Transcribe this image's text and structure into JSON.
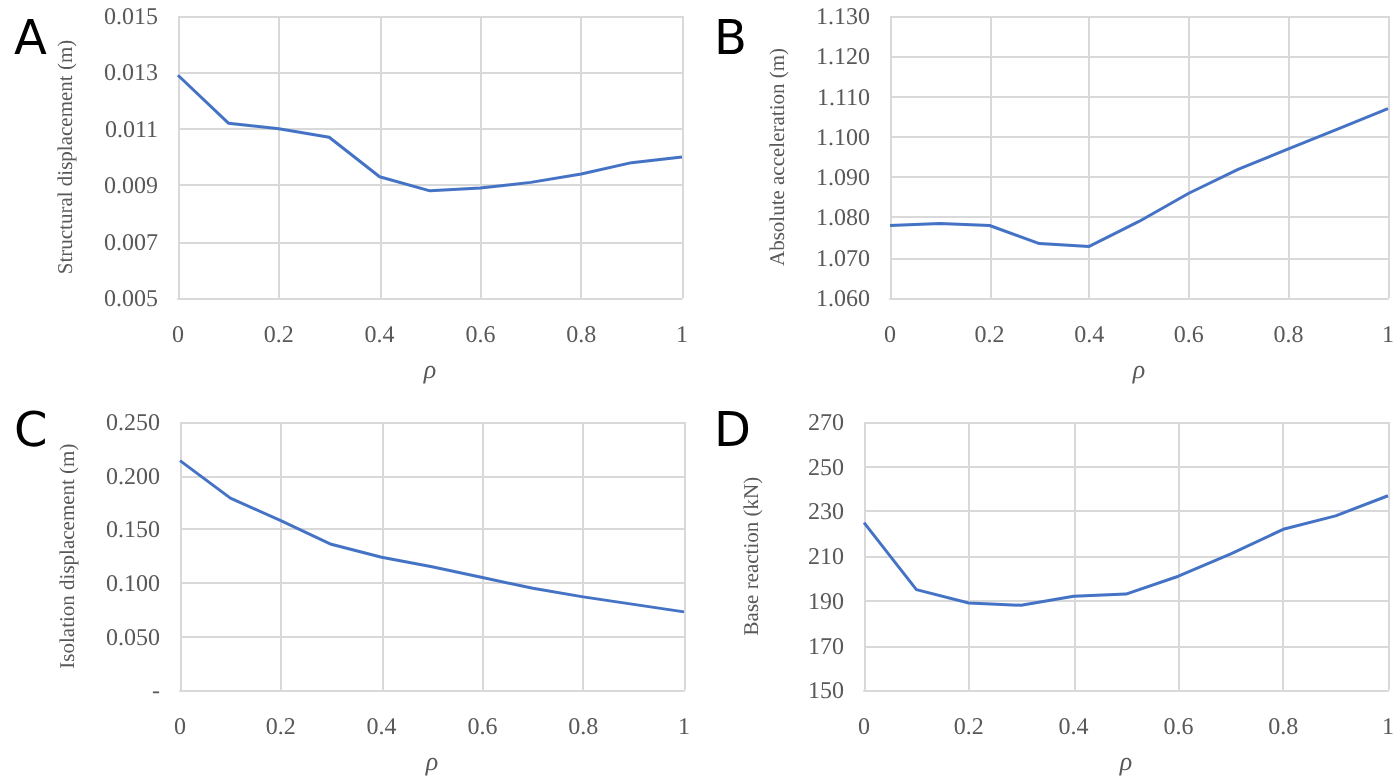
{
  "chart_data": [
    {
      "type": "line",
      "title": "A",
      "xlabel": "ρ",
      "ylabel": "Structural displacement (m)",
      "x": [
        0,
        0.1,
        0.2,
        0.3,
        0.4,
        0.5,
        0.6,
        0.7,
        0.8,
        0.9,
        1
      ],
      "series": [
        {
          "color": "#4472c4",
          "values": [
            0.0129,
            0.0112,
            0.011,
            0.0107,
            0.0093,
            0.0088,
            0.0089,
            0.0091,
            0.0094,
            0.0098,
            0.01
          ]
        }
      ],
      "xlim": [
        0,
        1
      ],
      "xticks": [
        0,
        0.2,
        0.4,
        0.6,
        0.8,
        1
      ],
      "ylim": [
        0.005,
        0.015
      ],
      "yticks": [
        0.005,
        0.007,
        0.009,
        0.011,
        0.013,
        0.015
      ],
      "grid": true,
      "marker": "none"
    },
    {
      "type": "line",
      "title": "B",
      "xlabel": "ρ",
      "ylabel": "Absolute acceleration (m)",
      "x": [
        0,
        0.1,
        0.2,
        0.3,
        0.4,
        0.5,
        0.6,
        0.7,
        0.8,
        0.9,
        1
      ],
      "series": [
        {
          "color": "#4472c4",
          "values": [
            1.078,
            1.0785,
            1.078,
            1.0735,
            1.0728,
            1.079,
            1.086,
            1.092,
            1.097,
            1.102,
            1.107
          ]
        }
      ],
      "xlim": [
        0,
        1
      ],
      "xticks": [
        0,
        0.2,
        0.4,
        0.6,
        0.8,
        1
      ],
      "ylim": [
        1.06,
        1.13
      ],
      "yticks": [
        {
          "value": 1.06,
          "label": "1.060"
        },
        {
          "value": 1.07,
          "label": "1.070"
        },
        {
          "value": 1.08,
          "label": "1.080"
        },
        {
          "value": 1.09,
          "label": "1.090"
        },
        {
          "value": 1.1,
          "label": "1.100"
        },
        {
          "value": 1.11,
          "label": "1.110"
        },
        {
          "value": 1.12,
          "label": "1.120"
        },
        {
          "value": 1.13,
          "label": "1.130"
        }
      ],
      "grid": true,
      "marker": "none"
    },
    {
      "type": "line",
      "title": "C",
      "xlabel": "ρ",
      "ylabel": "Isolation displacement (m)",
      "x": [
        0,
        0.1,
        0.2,
        0.3,
        0.4,
        0.5,
        0.6,
        0.7,
        0.8,
        0.9,
        1
      ],
      "series": [
        {
          "color": "#4472c4",
          "values": [
            0.214,
            0.179,
            0.158,
            0.136,
            0.124,
            0.115,
            0.105,
            0.095,
            0.087,
            0.08,
            0.073
          ]
        }
      ],
      "xlim": [
        0,
        1
      ],
      "xticks": [
        0,
        0.2,
        0.4,
        0.6,
        0.8,
        1
      ],
      "ylim": [
        0,
        0.25
      ],
      "yticks": [
        {
          "value": 0,
          "label": "-"
        },
        {
          "value": 0.05,
          "label": "0.050"
        },
        {
          "value": 0.1,
          "label": "0.100"
        },
        {
          "value": 0.15,
          "label": "0.150"
        },
        {
          "value": 0.2,
          "label": "0.200"
        },
        {
          "value": 0.25,
          "label": "0.250"
        }
      ],
      "grid": true,
      "marker": "none"
    },
    {
      "type": "line",
      "title": "D",
      "xlabel": "ρ",
      "ylabel": "Base reaction (kN)",
      "x": [
        0,
        0.1,
        0.2,
        0.3,
        0.4,
        0.5,
        0.6,
        0.7,
        0.8,
        0.9,
        1
      ],
      "series": [
        {
          "color": "#4472c4",
          "values": [
            225,
            195,
            189,
            188,
            192,
            193,
            201,
            211,
            222,
            228,
            237
          ]
        }
      ],
      "xlim": [
        0,
        1
      ],
      "xticks": [
        0,
        0.2,
        0.4,
        0.6,
        0.8,
        1
      ],
      "ylim": [
        150,
        270
      ],
      "yticks": [
        150,
        170,
        190,
        210,
        230,
        250,
        270
      ],
      "grid": true,
      "marker": "none"
    }
  ]
}
